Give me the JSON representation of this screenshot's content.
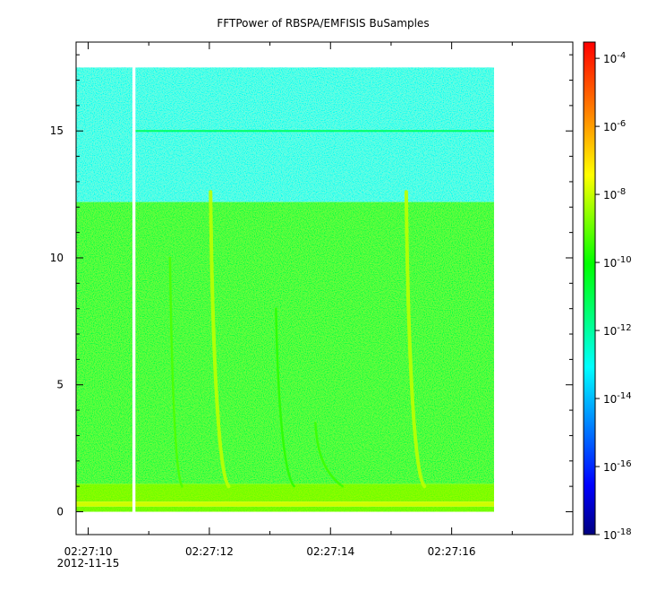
{
  "chart_data": {
    "type": "heatmap",
    "title": "FFTPower of RBSPA/EMFISIS  BuSamples",
    "xlabel": "",
    "ylabel": "",
    "x_tick_labels": [
      "02:27:10",
      "02:27:12",
      "02:27:14",
      "02:27:16"
    ],
    "x_tick_values_s": [
      10,
      12,
      14,
      16
    ],
    "x_date_label": "2012-11-15",
    "xlim_s": [
      9.8,
      18.0
    ],
    "x_data_range_s": [
      9.8,
      16.7
    ],
    "data_gap_s": [
      10.73,
      10.78
    ],
    "yticks": [
      0,
      5,
      10,
      15
    ],
    "ylim": [
      -0.9,
      18.5
    ],
    "y_data_range": [
      0,
      17.5
    ],
    "colorbar": {
      "scale": "log",
      "range": [
        1e-18,
        0.0003
      ],
      "tick_labels": [
        {
          "base": "10",
          "exp": "-4",
          "value": 0.0001
        },
        {
          "base": "10",
          "exp": "-6",
          "value": 1e-06
        },
        {
          "base": "10",
          "exp": "-8",
          "value": 1e-08
        },
        {
          "base": "10",
          "exp": "-10",
          "value": 1e-10
        },
        {
          "base": "10",
          "exp": "-12",
          "value": 1e-12
        },
        {
          "base": "10",
          "exp": "-14",
          "value": 1e-14
        },
        {
          "base": "10",
          "exp": "-16",
          "value": 1e-16
        },
        {
          "base": "10",
          "exp": "-18",
          "value": 1e-18
        }
      ],
      "colormap": [
        "#00007f",
        "#0000ff",
        "#007fff",
        "#00ffff",
        "#00ff7f",
        "#00ff00",
        "#7fff00",
        "#ffff00",
        "#ff7f00",
        "#ff0000"
      ]
    },
    "bands": [
      {
        "y_from": 12.2,
        "y_to": 17.5,
        "log_power": -13.0
      },
      {
        "y_from": 1.1,
        "y_to": 12.2,
        "log_power": -10.8
      },
      {
        "y_from": 0.4,
        "y_to": 1.1,
        "log_power": -8.6
      },
      {
        "y_from": 0.2,
        "y_to": 0.4,
        "log_power": -7.4
      },
      {
        "y_from": 0.0,
        "y_to": 0.2,
        "log_power": -8.8
      }
    ],
    "line_features": [
      {
        "y": 15.0,
        "log_power": -11.2
      }
    ],
    "chirps": [
      {
        "t_top": 12.02,
        "t_bottom": 12.32,
        "f_top": 12.6,
        "f_bottom": 1.0,
        "log_power": -7.6
      },
      {
        "t_top": 15.25,
        "t_bottom": 15.55,
        "f_top": 12.6,
        "f_bottom": 1.0,
        "log_power": -7.6
      },
      {
        "t_top": 11.35,
        "t_bottom": 11.55,
        "f_top": 10.0,
        "f_bottom": 1.0,
        "log_power": -9.0
      },
      {
        "t_top": 13.1,
        "t_bottom": 13.4,
        "f_top": 8.0,
        "f_bottom": 1.0,
        "log_power": -9.4
      },
      {
        "t_top": 13.75,
        "t_bottom": 14.2,
        "f_top": 3.5,
        "f_bottom": 1.0,
        "log_power": -9.2
      }
    ]
  }
}
